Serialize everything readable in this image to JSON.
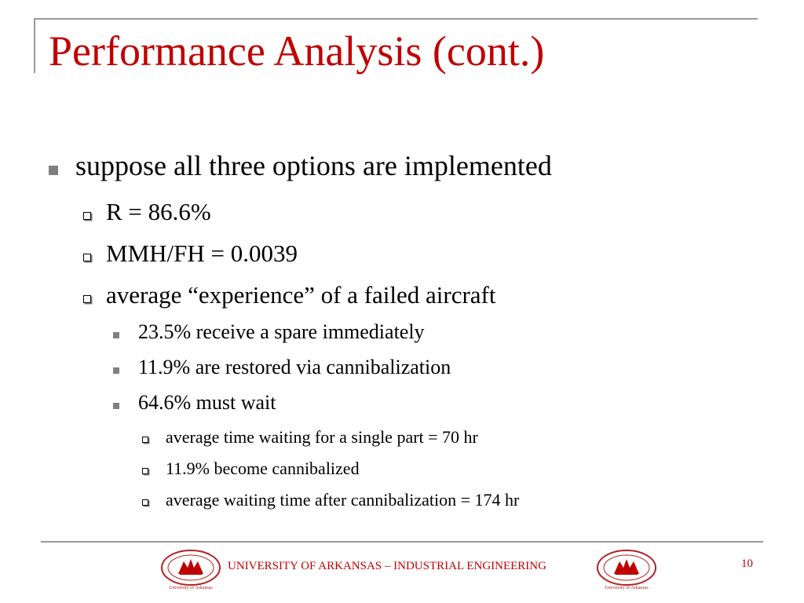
{
  "slide": {
    "title": "Performance Analysis (cont.)",
    "bullets": [
      {
        "level": 1,
        "text": "suppose all three options are implemented"
      },
      {
        "level": 2,
        "text": "R = 86.6%"
      },
      {
        "level": 2,
        "text": "MMH/FH = 0.0039"
      },
      {
        "level": 2,
        "text": "average “experience” of a failed aircraft"
      },
      {
        "level": 3,
        "text": "23.5% receive a spare immediately"
      },
      {
        "level": 3,
        "text": "11.9% are restored via cannibalization"
      },
      {
        "level": 3,
        "text": "64.6% must wait"
      },
      {
        "level": 4,
        "text": "average time waiting for a single part = 70 hr"
      },
      {
        "level": 4,
        "text": "11.9% become cannibalized"
      },
      {
        "level": 4,
        "text": "average waiting time after cannibalization = 174 hr"
      }
    ]
  },
  "footer": {
    "text": "UNIVERSITY OF ARKANSAS – INDUSTRIAL ENGINEERING",
    "page_number": "10",
    "seal_text": "University of Arkansas"
  },
  "colors": {
    "title": "#c00000",
    "footer_text": "#c00000",
    "rule": "#999999",
    "bullet_fill": "#7f7f7f"
  },
  "icons": {
    "level1": "filled-square-bullet-icon",
    "level2": "hollow-square-bullet-icon",
    "level3": "filled-square-bullet-icon",
    "level4": "hollow-square-bullet-icon",
    "logo": "university-seal-logo"
  }
}
